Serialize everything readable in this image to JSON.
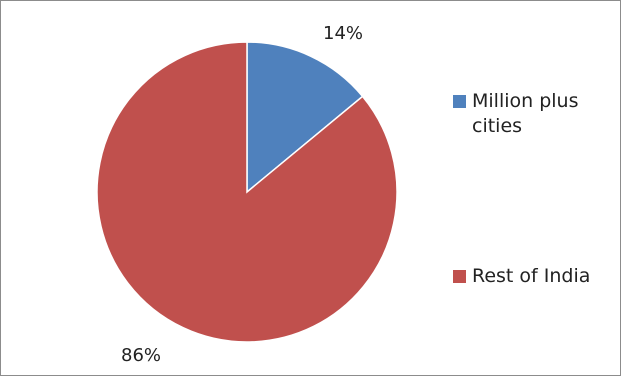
{
  "chart_data": {
    "type": "pie",
    "categories": [
      "Million plus cities",
      "Rest of India"
    ],
    "values": [
      14,
      86
    ],
    "data_labels": [
      "14%",
      "86%"
    ],
    "colors": [
      "#4f81bd",
      "#c0504d"
    ],
    "title": "",
    "legend_position": "right",
    "legend": [
      {
        "label": "Million plus cities",
        "color": "#4f81bd"
      },
      {
        "label": "Rest of India",
        "color": "#c0504d"
      }
    ]
  }
}
